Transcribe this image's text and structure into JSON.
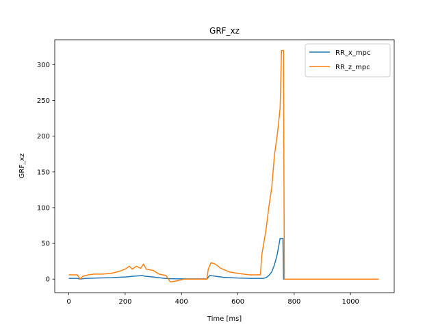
{
  "chart_data": {
    "type": "line",
    "title": "GRF_xz",
    "xlabel": "Time [ms]",
    "ylabel": "GRF_xz",
    "xlim": [
      -50,
      1155
    ],
    "ylim": [
      -19,
      335
    ],
    "xticks": [
      0,
      200,
      400,
      600,
      800,
      1000
    ],
    "yticks": [
      0,
      50,
      100,
      150,
      200,
      250,
      300
    ],
    "grid": false,
    "legend_position": "upper right",
    "series": [
      {
        "name": "RR_x_mpc",
        "color": "#1f77b4",
        "points": [
          [
            0,
            1
          ],
          [
            30,
            1
          ],
          [
            40,
            0
          ],
          [
            60,
            1
          ],
          [
            100,
            1.5
          ],
          [
            150,
            2
          ],
          [
            200,
            3
          ],
          [
            230,
            4
          ],
          [
            260,
            5
          ],
          [
            270,
            4
          ],
          [
            300,
            3
          ],
          [
            320,
            2
          ],
          [
            340,
            1
          ],
          [
            360,
            0.5
          ],
          [
            400,
            0.3
          ],
          [
            490,
            0.3
          ],
          [
            500,
            5
          ],
          [
            520,
            4
          ],
          [
            550,
            2.5
          ],
          [
            600,
            1.5
          ],
          [
            650,
            1
          ],
          [
            690,
            1
          ],
          [
            700,
            2
          ],
          [
            710,
            5
          ],
          [
            720,
            10
          ],
          [
            730,
            20
          ],
          [
            740,
            35
          ],
          [
            750,
            57
          ],
          [
            760,
            57
          ],
          [
            762,
            0
          ],
          [
            1100,
            0
          ]
        ]
      },
      {
        "name": "RR_z_mpc",
        "color": "#ff7f0e",
        "points": [
          [
            0,
            6
          ],
          [
            30,
            6
          ],
          [
            40,
            0
          ],
          [
            50,
            4
          ],
          [
            70,
            6
          ],
          [
            90,
            7
          ],
          [
            120,
            7
          ],
          [
            150,
            8
          ],
          [
            180,
            11
          ],
          [
            200,
            14
          ],
          [
            215,
            18
          ],
          [
            225,
            14
          ],
          [
            240,
            18
          ],
          [
            255,
            15
          ],
          [
            265,
            21
          ],
          [
            275,
            14
          ],
          [
            300,
            12
          ],
          [
            320,
            7
          ],
          [
            345,
            5
          ],
          [
            360,
            -4
          ],
          [
            390,
            -2
          ],
          [
            410,
            0
          ],
          [
            490,
            0
          ],
          [
            495,
            14
          ],
          [
            505,
            23
          ],
          [
            520,
            21
          ],
          [
            540,
            15
          ],
          [
            570,
            10
          ],
          [
            600,
            8
          ],
          [
            640,
            6
          ],
          [
            680,
            6
          ],
          [
            685,
            34
          ],
          [
            700,
            69
          ],
          [
            710,
            101
          ],
          [
            720,
            127
          ],
          [
            730,
            174
          ],
          [
            740,
            202
          ],
          [
            750,
            239
          ],
          [
            755,
            320
          ],
          [
            762,
            320
          ],
          [
            765,
            0
          ],
          [
            1100,
            0
          ]
        ]
      }
    ]
  }
}
